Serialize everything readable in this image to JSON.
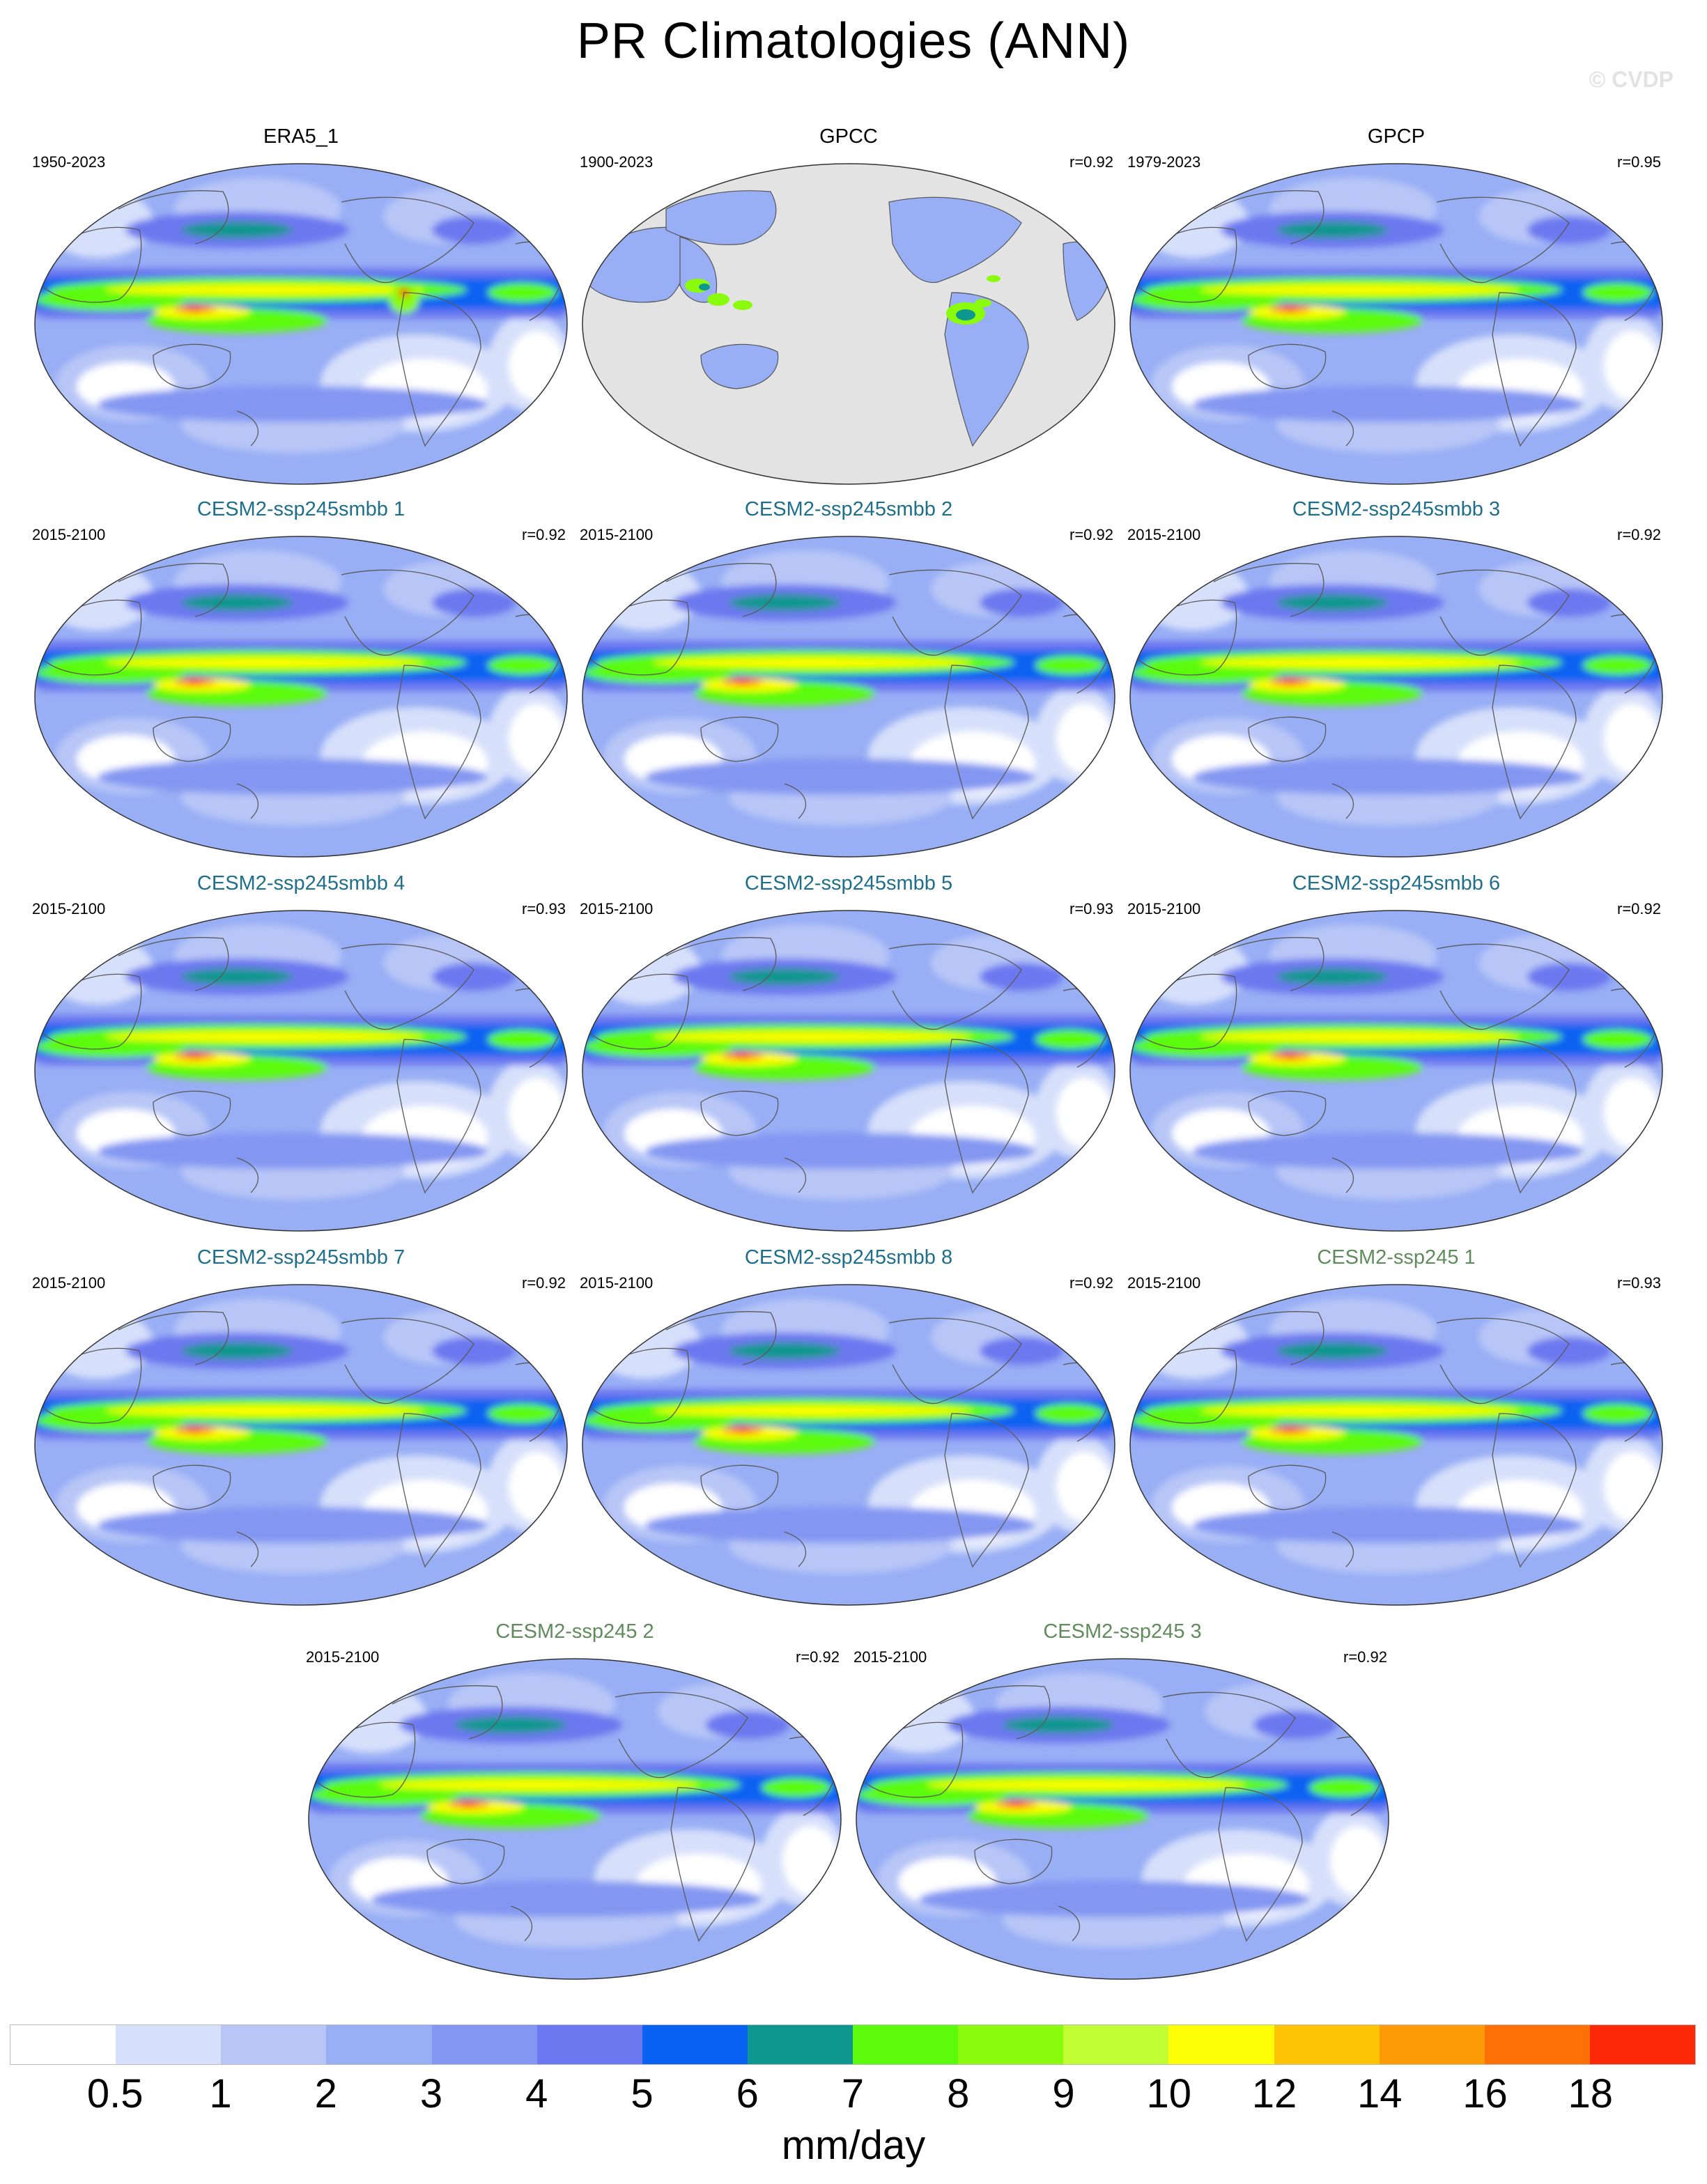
{
  "figure": {
    "title": "PR Climatologies (ANN)",
    "watermark": "© CVDP"
  },
  "panels": [
    {
      "title": "ERA5_1",
      "years": "1950-2023",
      "corr": "",
      "title_color": "#000000",
      "type": "reanalysis"
    },
    {
      "title": "GPCC",
      "years": "1900-2023",
      "corr": "r=0.92",
      "title_color": "#000000",
      "type": "landonly"
    },
    {
      "title": "GPCP",
      "years": "1979-2023",
      "corr": "r=0.95",
      "title_color": "#000000",
      "type": "obs"
    },
    {
      "title": "CESM2-ssp245smbb 1",
      "years": "2015-2100",
      "corr": "r=0.92",
      "title_color": "#1f6e8c",
      "type": "model"
    },
    {
      "title": "CESM2-ssp245smbb 2",
      "years": "2015-2100",
      "corr": "r=0.92",
      "title_color": "#1f6e8c",
      "type": "model"
    },
    {
      "title": "CESM2-ssp245smbb 3",
      "years": "2015-2100",
      "corr": "r=0.92",
      "title_color": "#1f6e8c",
      "type": "model"
    },
    {
      "title": "CESM2-ssp245smbb 4",
      "years": "2015-2100",
      "corr": "r=0.93",
      "title_color": "#1f6e8c",
      "type": "model"
    },
    {
      "title": "CESM2-ssp245smbb 5",
      "years": "2015-2100",
      "corr": "r=0.93",
      "title_color": "#1f6e8c",
      "type": "model"
    },
    {
      "title": "CESM2-ssp245smbb 6",
      "years": "2015-2100",
      "corr": "r=0.92",
      "title_color": "#1f6e8c",
      "type": "model"
    },
    {
      "title": "CESM2-ssp245smbb 7",
      "years": "2015-2100",
      "corr": "r=0.92",
      "title_color": "#1f6e8c",
      "type": "model"
    },
    {
      "title": "CESM2-ssp245smbb 8",
      "years": "2015-2100",
      "corr": "r=0.92",
      "title_color": "#1f6e8c",
      "type": "model"
    },
    {
      "title": "CESM2-ssp245 1",
      "years": "2015-2100",
      "corr": "r=0.93",
      "title_color": "#5f8c5a",
      "type": "model"
    },
    {
      "title": "CESM2-ssp245 2",
      "years": "2015-2100",
      "corr": "r=0.92",
      "title_color": "#5f8c5a",
      "type": "model"
    },
    {
      "title": "CESM2-ssp245 3",
      "years": "2015-2100",
      "corr": "r=0.92",
      "title_color": "#5f8c5a",
      "type": "model"
    }
  ],
  "colorbar": {
    "units": "mm/day",
    "tick_labels": [
      "0.5",
      "1",
      "2",
      "3",
      "4",
      "5",
      "6",
      "7",
      "8",
      "9",
      "10",
      "12",
      "14",
      "16",
      "18"
    ],
    "colors": [
      "#ffffff",
      "#d7e0fa",
      "#b8c6f7",
      "#98aef5",
      "#8397f2",
      "#6c78ef",
      "#0a62f2",
      "#0e978f",
      "#5cfb0c",
      "#8afb0c",
      "#c1fd33",
      "#fdfd05",
      "#fdc406",
      "#fd9b06",
      "#fd7006",
      "#fd2806"
    ]
  }
}
